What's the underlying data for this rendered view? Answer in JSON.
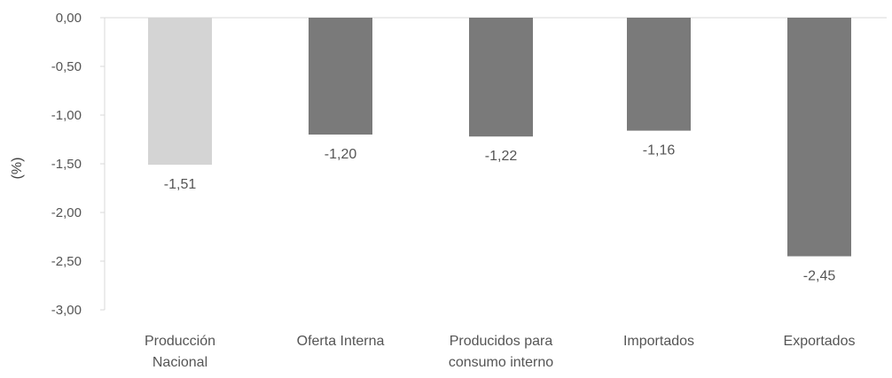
{
  "chart_data": {
    "type": "bar",
    "categories": [
      [
        "Producción",
        "Nacional"
      ],
      [
        "Oferta Interna"
      ],
      [
        "Producidos para",
        "consumo interno"
      ],
      [
        "Importados"
      ],
      [
        "Exportados"
      ]
    ],
    "values": [
      -1.51,
      -1.2,
      -1.22,
      -1.16,
      -2.45
    ],
    "data_labels": [
      "-1,51",
      "-1,20",
      "-1,22",
      "-1,16",
      "-2,45"
    ],
    "bar_colors": [
      "#d4d4d4",
      "#7a7a7a",
      "#7a7a7a",
      "#7a7a7a",
      "#7a7a7a"
    ],
    "title": "",
    "xlabel": "",
    "ylabel": "(%)",
    "ylim": [
      -3.0,
      0.0
    ],
    "yticks": [
      0.0,
      -0.5,
      -1.0,
      -1.5,
      -2.0,
      -2.5,
      -3.0
    ],
    "ytick_labels": [
      "0,00",
      "-0,50",
      "-1,00",
      "-1,50",
      "-2,00",
      "-2,50",
      "-3,00"
    ],
    "grid": false,
    "legend": "none"
  }
}
